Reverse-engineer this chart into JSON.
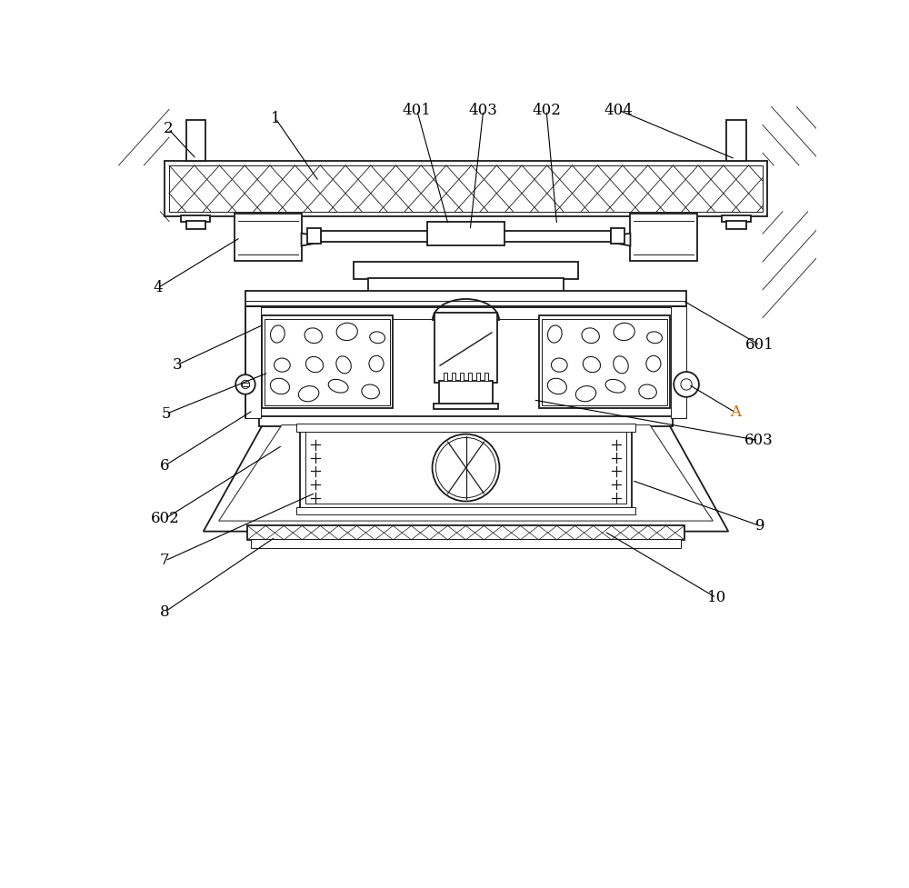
{
  "bg_color": "#ffffff",
  "line_color": "#1a1a1a",
  "orange_color": "#cc6600",
  "lw_main": 1.3,
  "lw_thin": 0.7,
  "label_fontsize": 12
}
